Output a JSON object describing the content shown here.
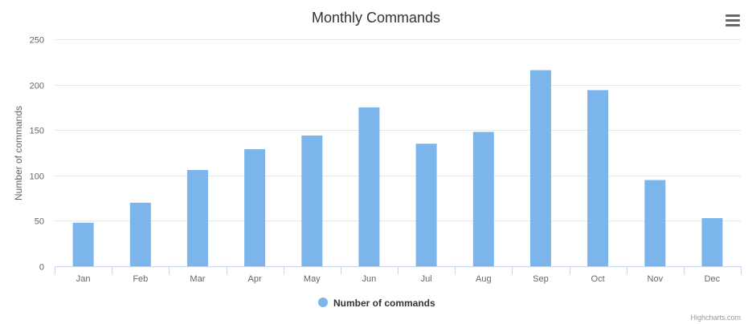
{
  "chart_data": {
    "type": "bar",
    "title": "Monthly Commands",
    "ylabel": "Number of commands",
    "xlabel": "",
    "categories": [
      "Jan",
      "Feb",
      "Mar",
      "Apr",
      "May",
      "Jun",
      "Jul",
      "Aug",
      "Sep",
      "Oct",
      "Nov",
      "Dec"
    ],
    "series": [
      {
        "name": "Number of commands",
        "color": "#7cb5ec",
        "values": [
          48,
          70,
          106,
          129,
          144,
          175,
          135,
          148,
          216,
          194,
          95,
          53
        ]
      }
    ],
    "ylim": [
      0,
      250
    ],
    "yticks": [
      0,
      50,
      100,
      150,
      200,
      250
    ],
    "grid": true,
    "legend": "bottom-center"
  },
  "menu_icon": "hamburger-menu-icon",
  "credits": "Highcharts.com"
}
